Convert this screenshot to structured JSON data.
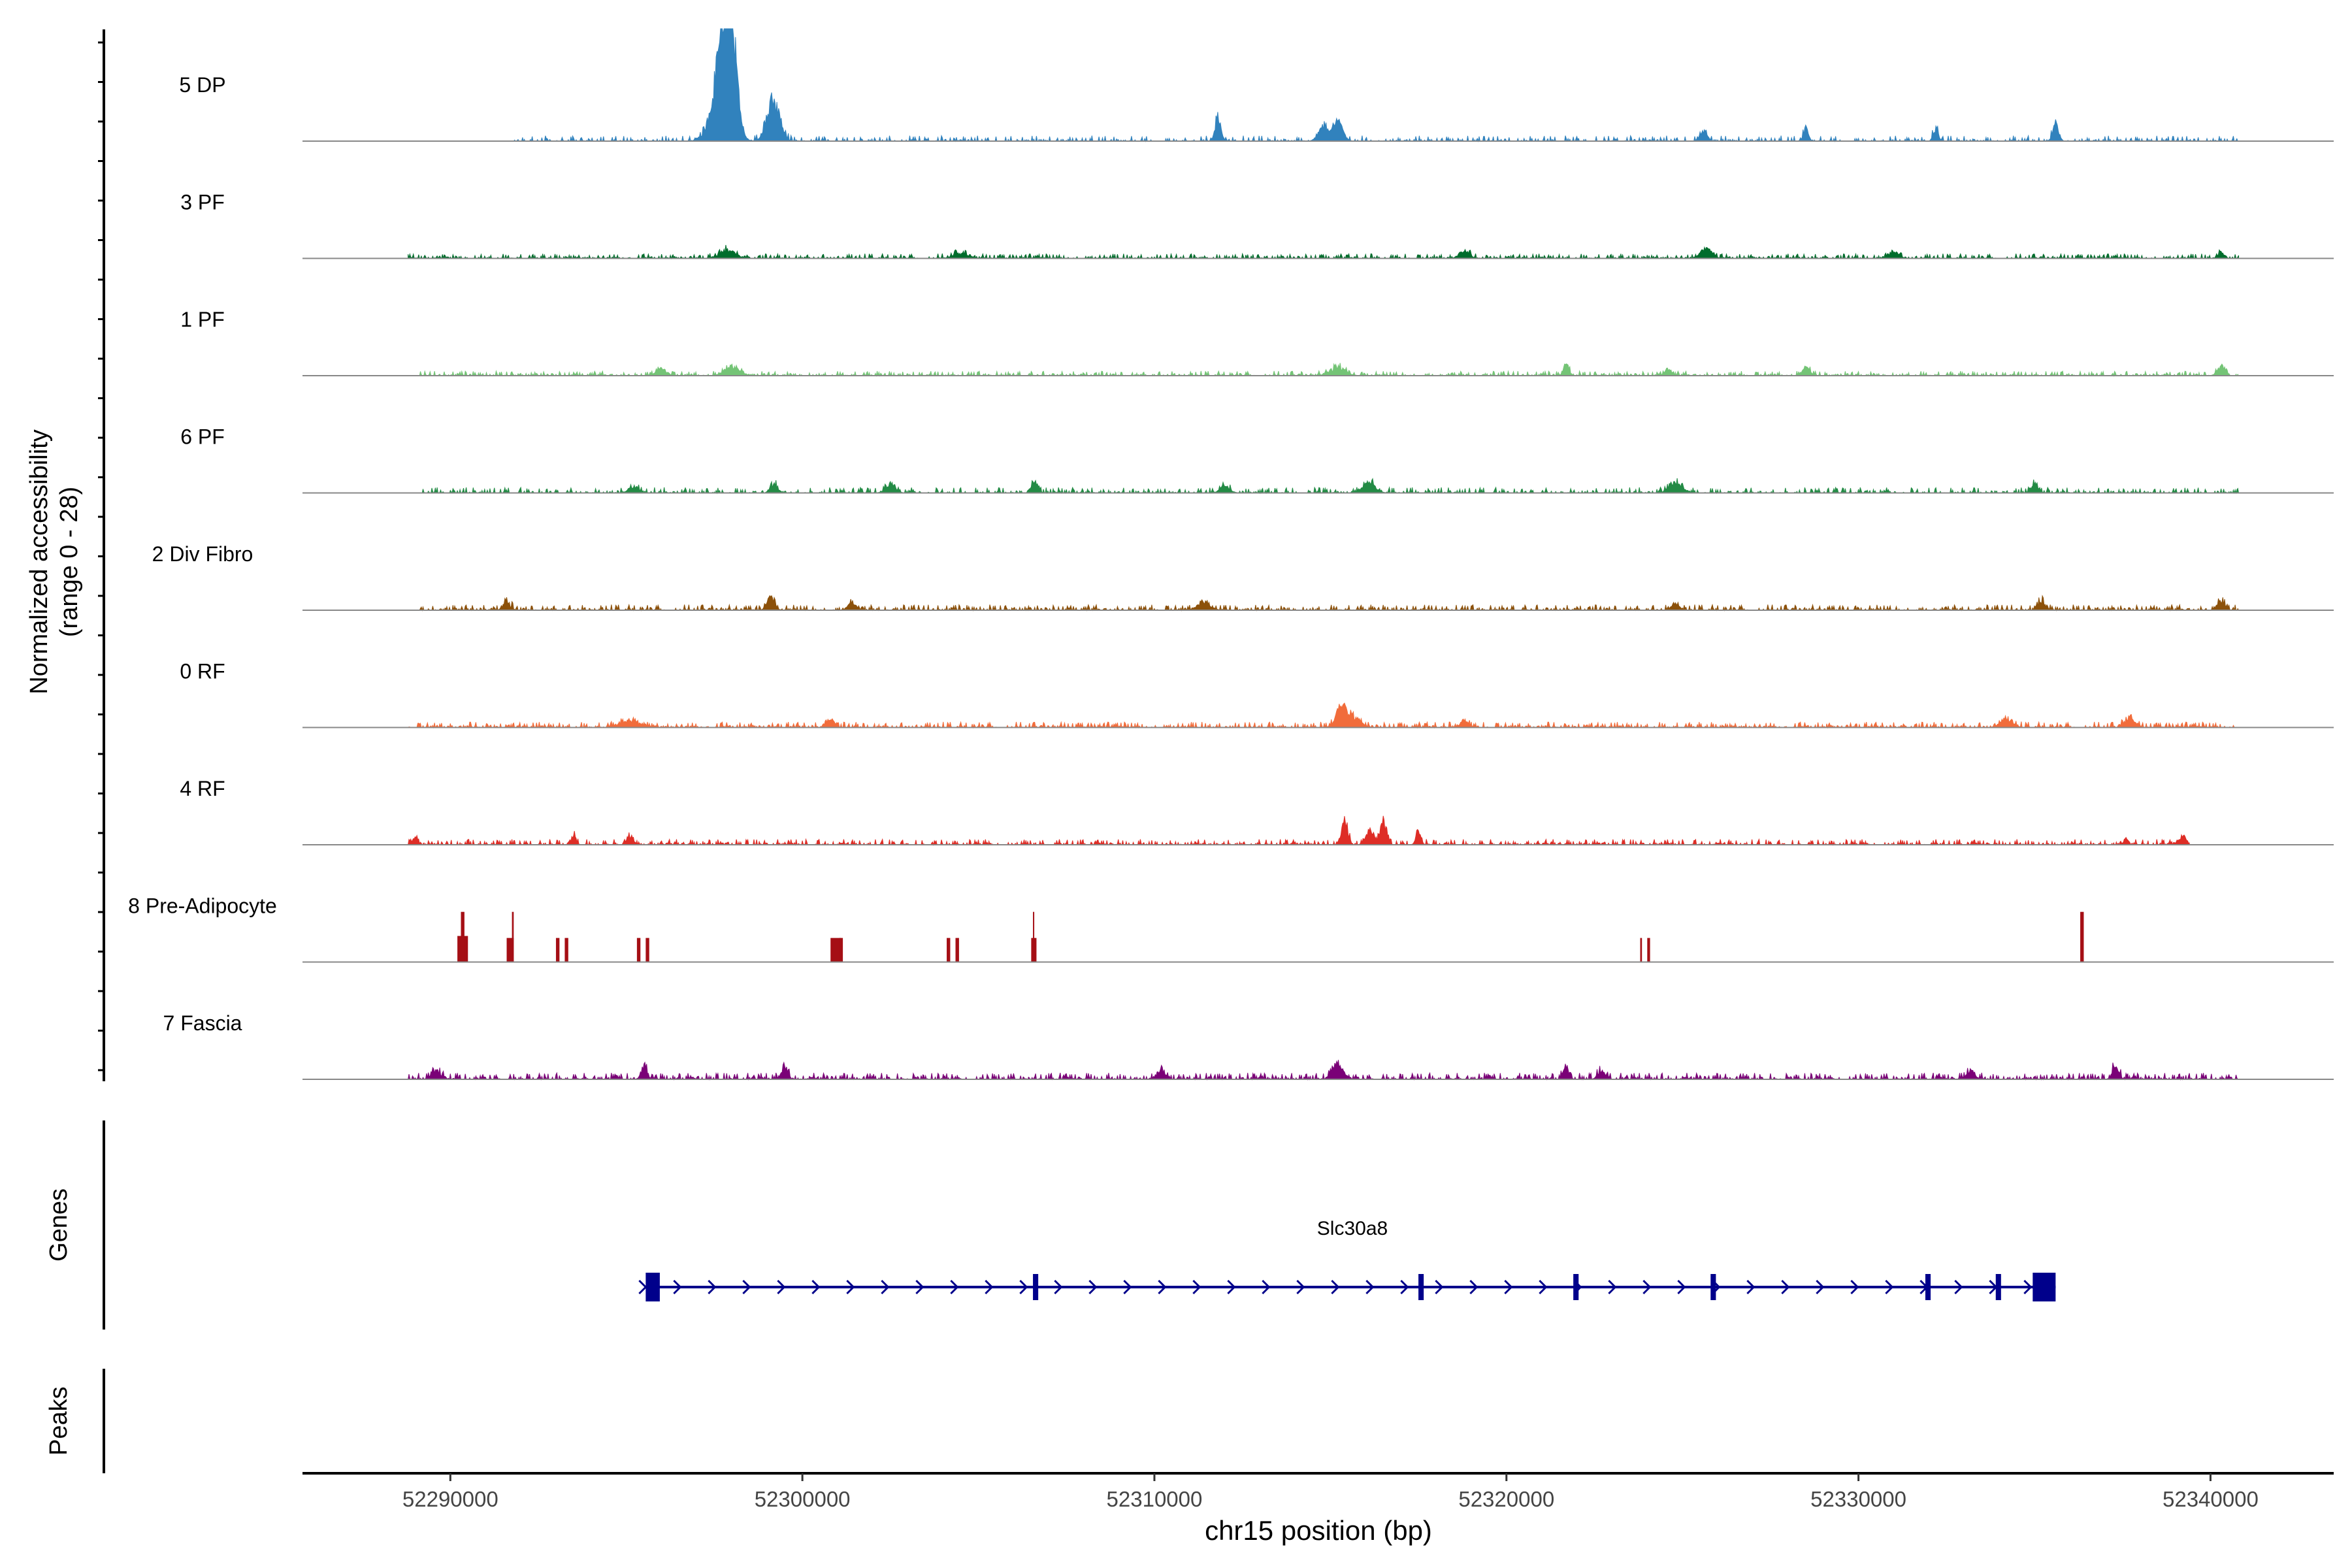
{
  "chart_data": {
    "type": "area",
    "title": "",
    "ylabel_line1": "Normalized accessibility",
    "ylabel_line2": "(range 0 - 28)",
    "xlabel": "chr15 position (bp)",
    "xlim": [
      52285800,
      52343500
    ],
    "ylim": [
      0,
      28
    ],
    "x_ticks": [
      52290000,
      52300000,
      52310000,
      52320000,
      52330000,
      52340000
    ],
    "x_tick_labels": [
      "52290000",
      "52300000",
      "52310000",
      "52320000",
      "52330000",
      "52340000"
    ],
    "genes_label": "Genes",
    "peaks_label": "Peaks",
    "tracks": [
      {
        "name": "5 DP",
        "color": "#3182bd",
        "range": [
          52291800,
          52340800
        ],
        "base": 0.6,
        "dense": 0.35,
        "peaks": [
          [
            52297800,
            26,
            280
          ],
          [
            52298000,
            20,
            200
          ],
          [
            52297700,
            14,
            400
          ],
          [
            52299100,
            10,
            220
          ],
          [
            52299300,
            6,
            200
          ],
          [
            52311800,
            7,
            120
          ],
          [
            52315200,
            6,
            200
          ],
          [
            52314800,
            4,
            200
          ],
          [
            52332200,
            4,
            100
          ],
          [
            52335600,
            5,
            120
          ],
          [
            52328500,
            4,
            100
          ],
          [
            52325600,
            3,
            150
          ]
        ]
      },
      {
        "name": "3 PF",
        "color": "#006d2c",
        "range": [
          52288800,
          52340800
        ],
        "base": 0.5,
        "dense": 0.55,
        "peaks": [
          [
            52297900,
            2.5,
            300
          ],
          [
            52325800,
            2.2,
            150
          ],
          [
            52325600,
            2.5,
            150
          ],
          [
            52340300,
            2,
            120
          ],
          [
            52304500,
            1.5,
            300
          ],
          [
            52318800,
            2,
            200
          ],
          [
            52331000,
            2,
            200
          ]
        ]
      },
      {
        "name": "1 PF",
        "color": "#74c476",
        "range": [
          52289000,
          52340800
        ],
        "base": 0.5,
        "dense": 0.5,
        "peaks": [
          [
            52321700,
            4,
            100
          ],
          [
            52340300,
            3,
            150
          ],
          [
            52328500,
            2.5,
            150
          ],
          [
            52315200,
            2.5,
            300
          ],
          [
            52298000,
            2.5,
            300
          ],
          [
            52296000,
            2.2,
            200
          ],
          [
            52324600,
            2.2,
            120
          ]
        ]
      },
      {
        "name": "6 PF",
        "color": "#238b45",
        "range": [
          52289200,
          52340800
        ],
        "base": 0.6,
        "dense": 0.45,
        "peaks": [
          [
            52306600,
            4,
            120
          ],
          [
            52324800,
            3.5,
            250
          ],
          [
            52316100,
            3,
            250
          ],
          [
            52299200,
            2.5,
            150
          ],
          [
            52302500,
            2.5,
            200
          ],
          [
            52335000,
            2.5,
            150
          ],
          [
            52312000,
            2,
            200
          ],
          [
            52295200,
            2,
            200
          ]
        ]
      },
      {
        "name": "2 Div Fibro",
        "color": "#8c510a",
        "range": [
          52289100,
          52340800
        ],
        "base": 0.6,
        "dense": 0.5,
        "peaks": [
          [
            52299100,
            4,
            150
          ],
          [
            52340300,
            3,
            150
          ],
          [
            52335200,
            2.5,
            150
          ],
          [
            52311400,
            2.5,
            250
          ],
          [
            52301400,
            2.5,
            150
          ],
          [
            52291600,
            2.5,
            150
          ],
          [
            52324800,
            2.2,
            150
          ]
        ]
      },
      {
        "name": "0 RF",
        "color": "#f16c3b",
        "range": [
          52288800,
          52340800
        ],
        "base": 0.6,
        "dense": 0.55,
        "peaks": [
          [
            52315300,
            5.5,
            200
          ],
          [
            52315600,
            3.5,
            300
          ],
          [
            52337700,
            3,
            200
          ],
          [
            52295100,
            2,
            400
          ],
          [
            52300800,
            2.5,
            150
          ],
          [
            52334200,
            2.5,
            250
          ],
          [
            52318800,
            2.2,
            150
          ]
        ]
      },
      {
        "name": "4 RF",
        "color": "#de2d26",
        "range": [
          52288800,
          52339400
        ],
        "base": 0.6,
        "dense": 0.5,
        "peaks": [
          [
            52315400,
            7,
            130
          ],
          [
            52316500,
            7,
            130
          ],
          [
            52316100,
            4,
            150
          ],
          [
            52317500,
            4,
            100
          ],
          [
            52295100,
            3,
            120
          ],
          [
            52293500,
            2.5,
            100
          ],
          [
            52339200,
            2.5,
            150
          ],
          [
            52337600,
            2,
            100
          ],
          [
            52289000,
            2,
            100
          ]
        ]
      },
      {
        "name": "8 Pre-Adipocyte",
        "color": "#a50f15",
        "range": [
          52290000,
          52336400
        ],
        "base": 0.0,
        "dense": 0.0,
        "bars": [
          [
            52290200,
            52290500,
            6.5
          ],
          [
            52290300,
            52290400,
            12.5
          ],
          [
            52291600,
            52291800,
            6
          ],
          [
            52291750,
            52291800,
            12.5
          ],
          [
            52293000,
            52293100,
            6
          ],
          [
            52293250,
            52293350,
            6
          ],
          [
            52295300,
            52295400,
            6
          ],
          [
            52295550,
            52295650,
            6
          ],
          [
            52300800,
            52301100,
            6
          ],
          [
            52301050,
            52301150,
            6
          ],
          [
            52304100,
            52304200,
            6
          ],
          [
            52304350,
            52304450,
            6
          ],
          [
            52306500,
            52306650,
            6
          ],
          [
            52306550,
            52306580,
            12.5
          ],
          [
            52323800,
            52323850,
            6
          ],
          [
            52324000,
            52324080,
            6
          ],
          [
            52336300,
            52336400,
            12.5
          ]
        ]
      },
      {
        "name": "7 Fascia",
        "color": "#7a0177",
        "range": [
          52288800,
          52340800
        ],
        "base": 0.7,
        "dense": 0.55,
        "peaks": [
          [
            52315200,
            5,
            200
          ],
          [
            52337300,
            4.5,
            120
          ],
          [
            52299500,
            4,
            120
          ],
          [
            52295500,
            3.5,
            120
          ],
          [
            52310200,
            3,
            150
          ],
          [
            52321700,
            3.5,
            120
          ],
          [
            52333200,
            3,
            150
          ],
          [
            52289600,
            2.5,
            200
          ],
          [
            52322700,
            2.5,
            150
          ]
        ]
      }
    ],
    "gene": {
      "name": "Slc30a8",
      "strand": "+",
      "start": 52295550,
      "end": 52335600,
      "exons": [
        [
          52295550,
          52295950
        ],
        [
          52306550,
          52306700
        ],
        [
          52317500,
          52317650
        ],
        [
          52321900,
          52322050
        ],
        [
          52325800,
          52325950
        ],
        [
          52331900,
          52332050
        ],
        [
          52333900,
          52334050
        ],
        [
          52334950,
          52335600
        ]
      ],
      "color": "#00008b"
    },
    "peaks_track": []
  }
}
